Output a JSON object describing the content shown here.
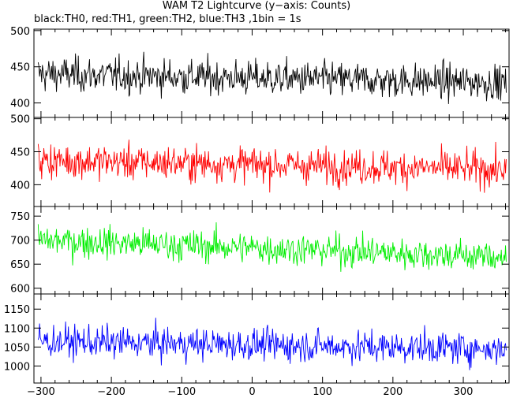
{
  "chart_data": {
    "type": "line",
    "title": "WAM T2 Lightcurve (y−axis: Counts)",
    "subtitle": "black:TH0, red:TH1, green:TH2, blue:TH3 ,1bin = 1s",
    "xlim": [
      -310,
      365
    ],
    "xticks": [
      "−300",
      "−200",
      "−100",
      "0",
      "100",
      "200",
      "300"
    ],
    "xtick_values": [
      -300,
      -200,
      -100,
      0,
      100,
      200,
      300
    ],
    "series": [
      {
        "name": "TH0",
        "color": "#000000",
        "ylim": [
          380,
          502
        ],
        "yticks": [
          400,
          450,
          500
        ],
        "mean_start": 440,
        "mean_end": 428,
        "spread": 22,
        "values_summary": "noisy count rate ≈ 395–490 counts per 1s bin"
      },
      {
        "name": "TH1",
        "color": "#ff0000",
        "ylim": [
          367,
          502
        ],
        "yticks": [
          400,
          450,
          500
        ],
        "mean_start": 437,
        "mean_end": 423,
        "spread": 24,
        "values_summary": "noisy count rate ≈ 375–495 counts per 1s bin"
      },
      {
        "name": "TH2",
        "color": "#00ee00",
        "ylim": [
          588,
          770
        ],
        "yticks": [
          600,
          650,
          700,
          750
        ],
        "mean_start": 700,
        "mean_end": 665,
        "spread": 30,
        "values_summary": "noisy count rate ≈ 600–765 counts per 1s bin"
      },
      {
        "name": "TH3",
        "color": "#0000ff",
        "ylim": [
          955,
          1190
        ],
        "yticks": [
          1000,
          1050,
          1100,
          1150
        ],
        "mean_start": 1065,
        "mean_end": 1045,
        "spread": 38,
        "values_summary": "noisy count rate ≈ 975–1185 counts per 1s bin"
      }
    ],
    "grid": false,
    "legend": "subtitle text"
  }
}
